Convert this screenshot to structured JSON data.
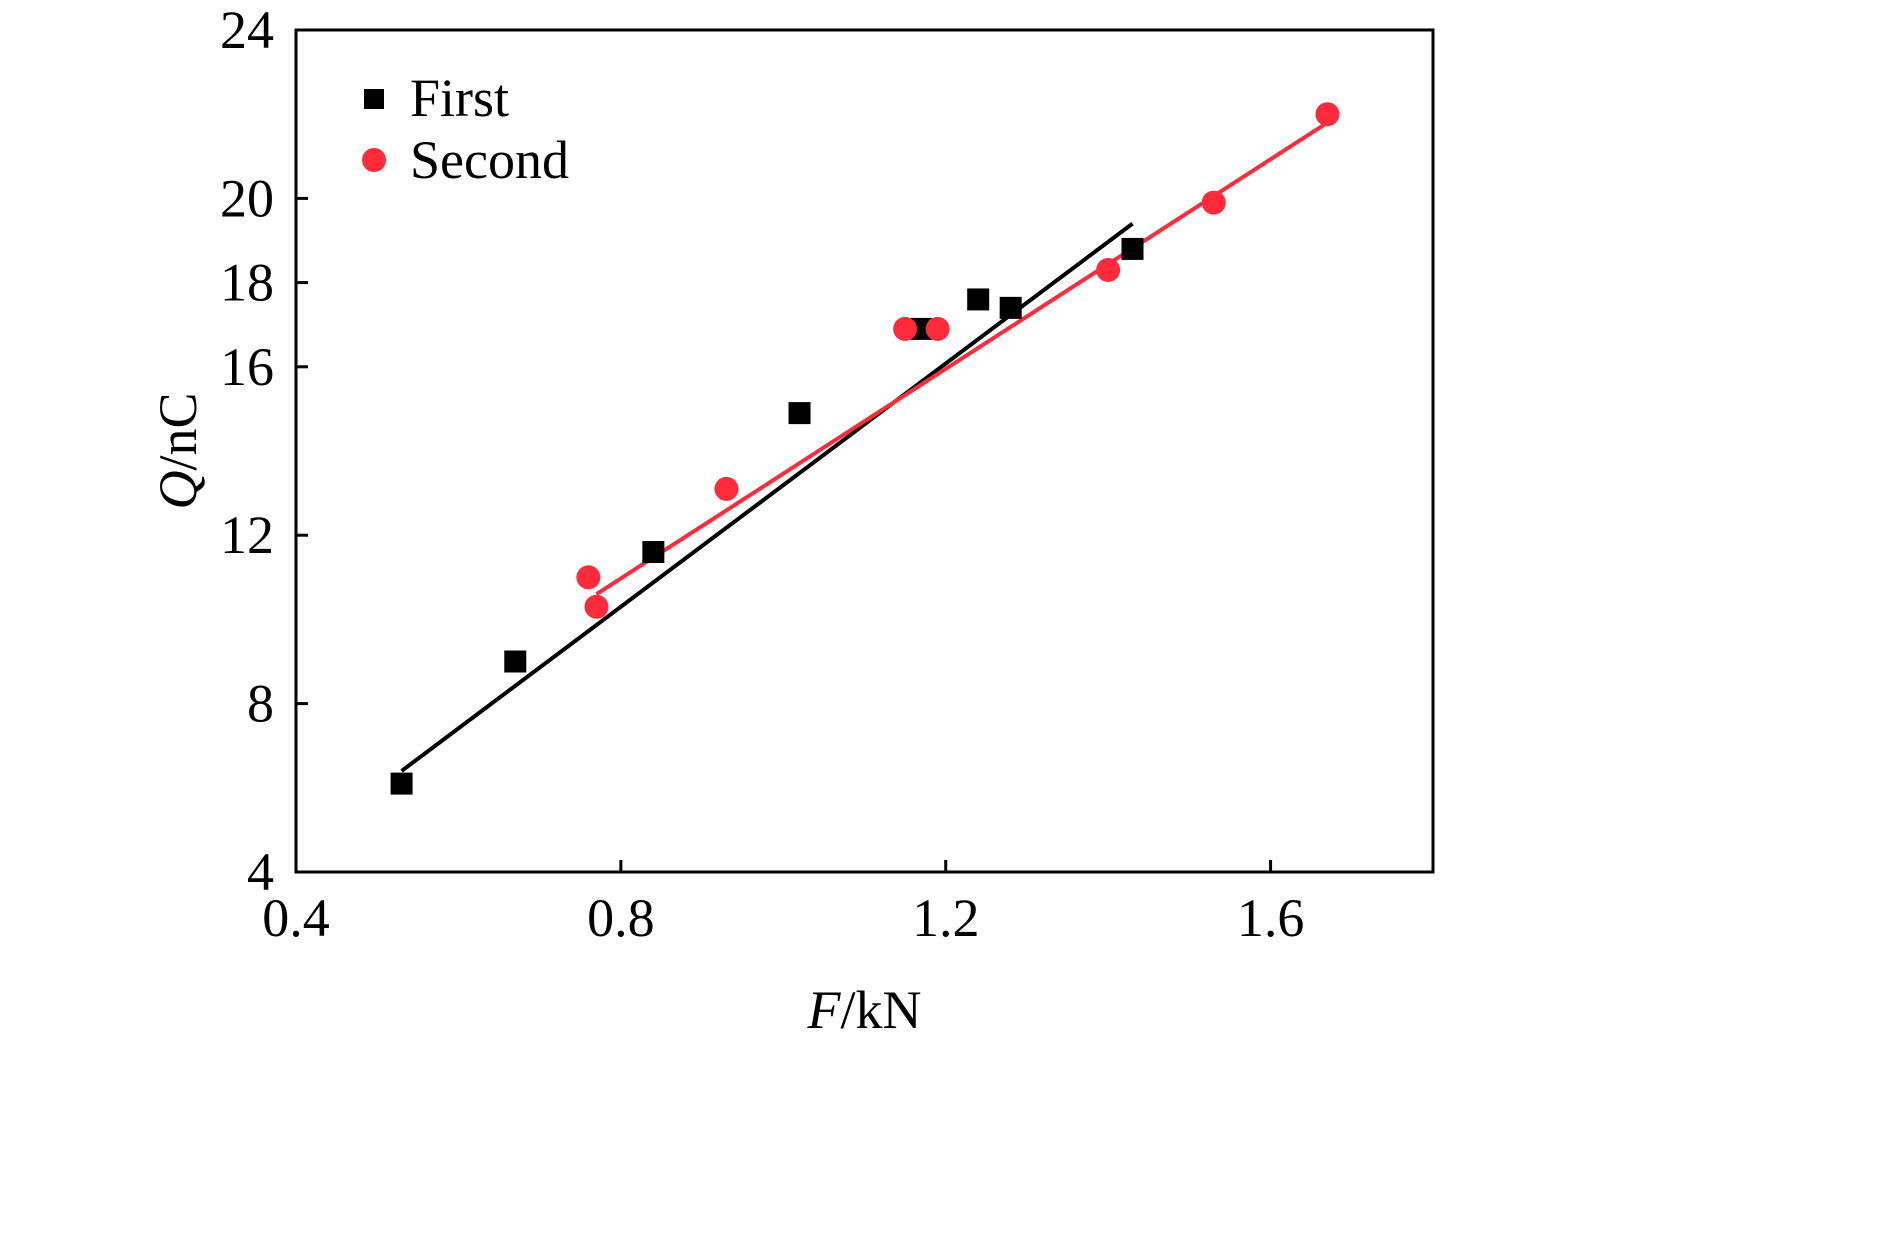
{
  "chart_data": {
    "type": "scatter",
    "xlabel": {
      "var": "F",
      "unit": "/kN"
    },
    "ylabel": {
      "var": "Q",
      "unit": "/nC"
    },
    "xlim": [
      0.4,
      1.8
    ],
    "ylim": [
      4,
      24
    ],
    "xticks": [
      0.4,
      0.8,
      1.2,
      1.6
    ],
    "xtick_labels": [
      "0.4",
      "0.8",
      "1.2",
      "1.6"
    ],
    "yticks": [
      4,
      8,
      12,
      16,
      18,
      20,
      24
    ],
    "ytick_labels": [
      "4",
      "8",
      "12",
      "16",
      "18",
      "20",
      "24"
    ],
    "legend_position": "top-left",
    "grid": false,
    "series": [
      {
        "name": "First",
        "marker": "square",
        "color": "#000000",
        "points": [
          [
            0.53,
            6.1
          ],
          [
            0.67,
            9.0
          ],
          [
            0.84,
            11.6
          ],
          [
            1.02,
            14.9
          ],
          [
            1.17,
            16.9
          ],
          [
            1.24,
            17.6
          ],
          [
            1.28,
            17.4
          ],
          [
            1.43,
            18.8
          ]
        ],
        "fit": [
          [
            0.53,
            6.4
          ],
          [
            1.43,
            19.4
          ]
        ]
      },
      {
        "name": "Second",
        "marker": "circle",
        "color": "#ff2a3a",
        "points": [
          [
            0.76,
            11.0
          ],
          [
            0.77,
            10.3
          ],
          [
            0.93,
            13.1
          ],
          [
            1.15,
            16.9
          ],
          [
            1.19,
            16.9
          ],
          [
            1.4,
            18.3
          ],
          [
            1.53,
            19.9
          ],
          [
            1.67,
            22.0
          ]
        ],
        "fit": [
          [
            0.77,
            10.6
          ],
          [
            1.67,
            21.8
          ]
        ]
      }
    ]
  }
}
